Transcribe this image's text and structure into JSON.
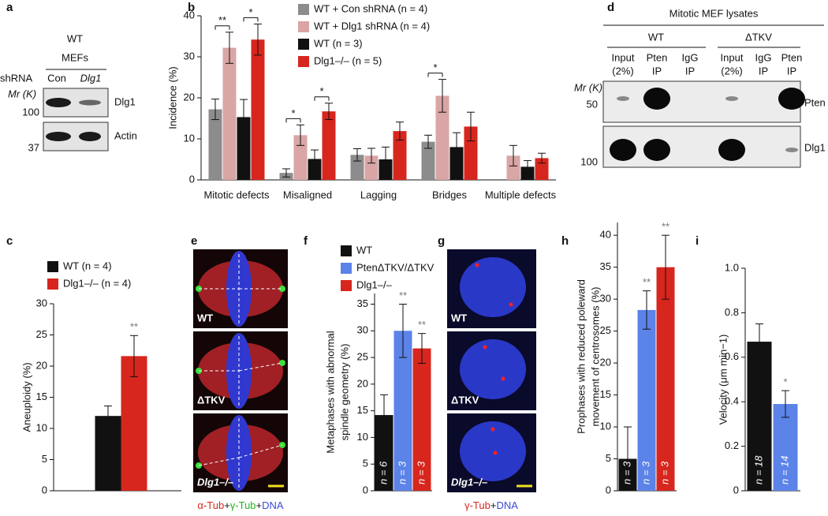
{
  "panels": {
    "labels": [
      "a",
      "b",
      "c",
      "d",
      "e",
      "f",
      "g",
      "h",
      "i"
    ]
  },
  "blot_a": {
    "genotype": "WT",
    "cells": "MEFs",
    "shrna": "shRNA",
    "lanes": [
      "Con",
      "Dlg1"
    ],
    "mr": "Mr (K)",
    "markers": [
      "100",
      "37"
    ],
    "bands": [
      "Dlg1",
      "Actin"
    ]
  },
  "blot_d": {
    "title": "Mitotic MEF lysates",
    "groups": [
      "WT",
      "ΔTKV"
    ],
    "lanes": [
      [
        "Input",
        "(2%)"
      ],
      [
        "Pten",
        "IP"
      ],
      [
        "IgG",
        "IP"
      ],
      [
        "Input",
        "(2%)"
      ],
      [
        "IgG",
        "IP"
      ],
      [
        "Pten",
        "IP"
      ]
    ],
    "mr": "Mr (K)",
    "markers": [
      "50",
      "100"
    ],
    "bands": [
      "Pten",
      "Dlg1"
    ]
  },
  "image_e": {
    "labels": [
      "WT",
      "ΔTKV",
      "Dlg1–/–"
    ],
    "caption": [
      "α-Tub",
      "+",
      "γ-Tub",
      "+",
      "DNA"
    ]
  },
  "image_g": {
    "labels": [
      "WT",
      "ΔTKV",
      "Dlg1–/–"
    ],
    "caption": [
      "γ-Tub",
      "+",
      "DNA"
    ]
  },
  "chart_data": [
    {
      "type": "bar",
      "ylabel": "Incidence (%)",
      "categories": [
        "Mitotic defects",
        "Misaligned",
        "Lagging",
        "Bridges",
        "Multiple defects"
      ],
      "series": [
        {
          "name": "WT + Con shRNA (n = 4)",
          "color": "#8c8c8c",
          "values": [
            17.2,
            1.7,
            6.1,
            9.3,
            null
          ],
          "errors": [
            2.5,
            1.0,
            1.5,
            1.6,
            null
          ]
        },
        {
          "name": "WT + Dlg1 shRNA (n = 4)",
          "color": "#d9a5a5",
          "values": [
            32.2,
            10.9,
            5.9,
            20.5,
            5.9
          ],
          "errors": [
            3.8,
            2.5,
            1.8,
            4.0,
            2.5
          ]
        },
        {
          "name": "WT (n = 3)",
          "color": "#111111",
          "values": [
            15.3,
            5.1,
            5.0,
            8.0,
            3.2
          ],
          "errors": [
            4.3,
            2.2,
            3.0,
            3.5,
            1.5
          ]
        },
        {
          "name": "Dlg1–/– (n = 5)",
          "color": "#d7261e",
          "values": [
            34.2,
            16.7,
            11.9,
            13.0,
            5.3
          ],
          "errors": [
            3.8,
            2.0,
            2.2,
            3.5,
            1.2
          ]
        }
      ],
      "ylim": [
        0,
        40
      ],
      "yticks": [
        0,
        10,
        20,
        30,
        40
      ],
      "annotations": [
        "**",
        "*",
        "*",
        "*",
        "*"
      ]
    },
    {
      "type": "bar",
      "ylabel": "Aneuploidy (%)",
      "series": [
        {
          "name": "WT (n = 4)",
          "color": "#111111",
          "values": [
            12.0
          ],
          "errors": [
            1.6
          ]
        },
        {
          "name": "Dlg1–/– (n = 4)",
          "color": "#d7261e",
          "values": [
            21.6
          ],
          "errors": [
            3.3
          ]
        }
      ],
      "ylim": [
        0,
        30
      ],
      "yticks": [
        0,
        5,
        10,
        15,
        20,
        25,
        30
      ],
      "annotations": [
        "**"
      ]
    },
    {
      "type": "bar",
      "ylabel": [
        "Metaphases with abnormal",
        "spindle geometry (%)"
      ],
      "series": [
        {
          "name": "WT",
          "color": "#111111",
          "values": [
            14.2
          ],
          "errors": [
            3.8
          ],
          "n_label": "n = 6"
        },
        {
          "name": "PtenΔTKV/ΔTKV",
          "color": "#5b83e8",
          "values": [
            30.0
          ],
          "errors": [
            5.0
          ],
          "n_label": "n = 3"
        },
        {
          "name": "Dlg1–/–",
          "color": "#d7261e",
          "values": [
            26.7
          ],
          "errors": [
            2.8
          ],
          "n_label": "n = 3"
        }
      ],
      "ylim": [
        0,
        37
      ],
      "yticks": [
        0,
        5,
        10,
        15,
        20,
        25,
        30,
        35
      ],
      "annotations": [
        "**",
        "**"
      ]
    },
    {
      "type": "bar",
      "ylabel": [
        "Prophases with reduced poleward",
        "movement of centrosomes (%)"
      ],
      "series": [
        {
          "color": "#111111",
          "values": [
            5.0
          ],
          "errors": [
            5.0
          ],
          "n_label": "n = 3"
        },
        {
          "color": "#5b83e8",
          "values": [
            28.3
          ],
          "errors": [
            3.0
          ],
          "n_label": "n = 3"
        },
        {
          "color": "#d7261e",
          "values": [
            35.0
          ],
          "errors": [
            5.0
          ],
          "n_label": "n = 3"
        }
      ],
      "ylim": [
        0,
        42
      ],
      "yticks": [
        0,
        5,
        10,
        15,
        20,
        25,
        30,
        35,
        40
      ],
      "annotations": [
        "**",
        "**"
      ]
    },
    {
      "type": "bar",
      "ylabel": "Velocity (μm min−1)",
      "series": [
        {
          "color": "#111111",
          "values": [
            0.67
          ],
          "errors": [
            0.08
          ],
          "n_label": "n = 18"
        },
        {
          "color": "#5b83e8",
          "values": [
            0.39
          ],
          "errors": [
            0.06
          ],
          "n_label": "n = 14"
        }
      ],
      "ylim": [
        0,
        1
      ],
      "yticks": [
        0,
        0.2,
        0.4,
        0.6,
        0.8,
        {
          "value": 1,
          "label": "1.0"
        }
      ],
      "annotations": [
        "*"
      ]
    }
  ]
}
